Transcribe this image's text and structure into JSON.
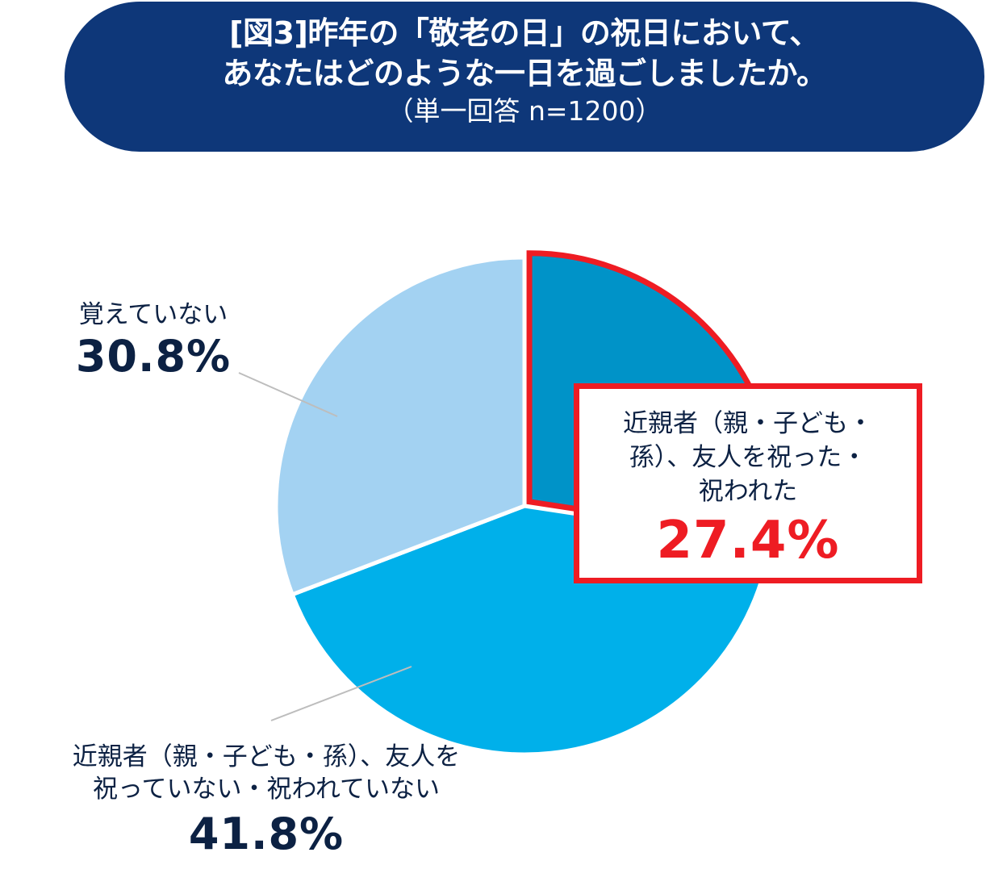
{
  "title": {
    "line1": "[図3]昨年の「敬老の日」の祝日において、",
    "line2": "あなたはどのような一日を過ごしましたか。",
    "sub": "（単一回答 n=1200）"
  },
  "chart_data": {
    "type": "pie",
    "slices": [
      {
        "label_lines": [
          "近親者（親・子ども・",
          "孫）、友人を祝った・",
          "祝われた"
        ],
        "value": 27.4,
        "value_label": "27.4%",
        "color": "#0093c8",
        "highlight_color": "#ee1c23"
      },
      {
        "label_lines": [
          "近親者（親・子ども・孫）、友人を",
          "祝っていない・祝われていない"
        ],
        "value": 41.8,
        "value_label": "41.8%",
        "color": "#00b0ea"
      },
      {
        "label_lines": [
          "覚えていない"
        ],
        "value": 30.8,
        "value_label": "30.8%",
        "color": "#a3d2f2"
      }
    ],
    "start_angle_deg": 0,
    "direction": "clockwise",
    "highlighted_slice": 0,
    "legend": "none"
  },
  "colors": {
    "title_bg": "#0e3779",
    "text": "#0c2143",
    "leader_line": "#bdbdbd"
  }
}
